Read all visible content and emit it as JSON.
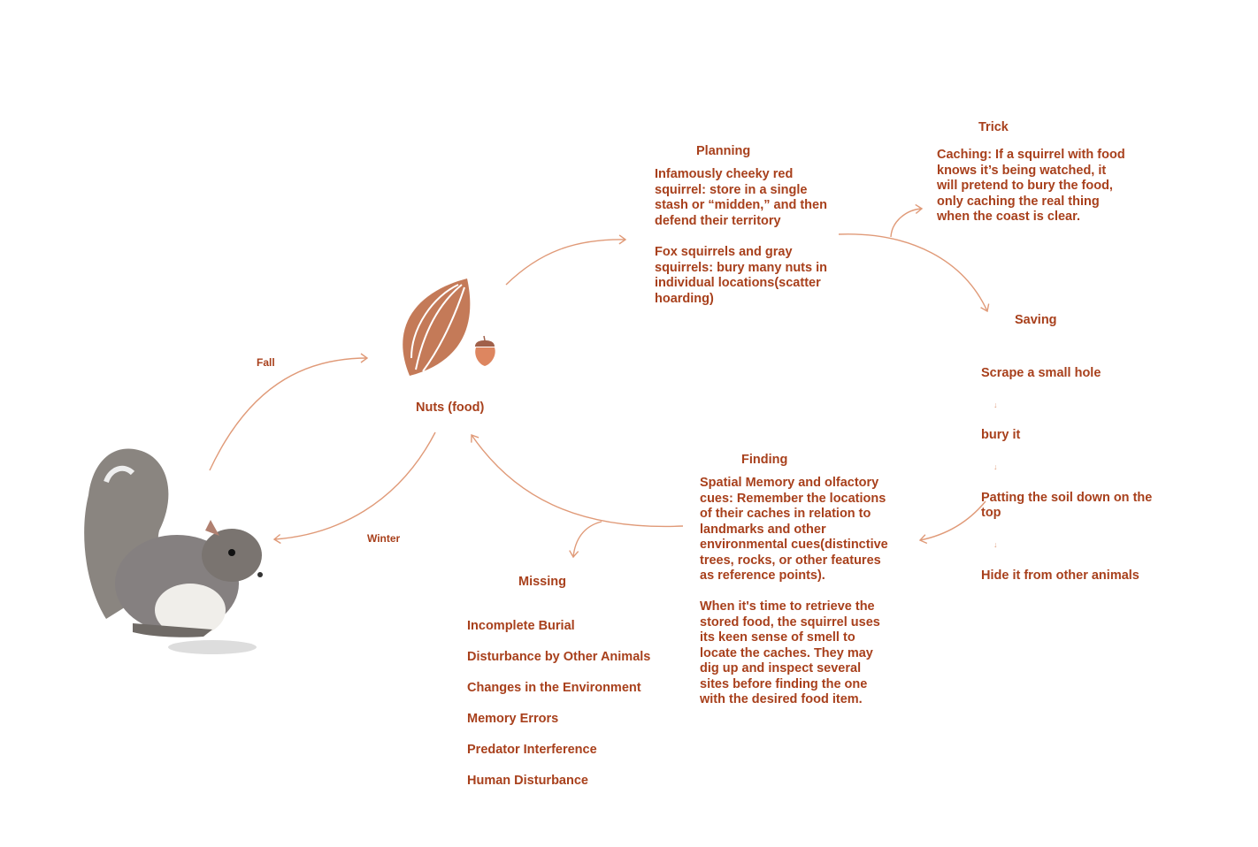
{
  "colors": {
    "text": "#a8401c",
    "arrow": "#e09a78",
    "nut": "#c47a58",
    "acorn": "#dd8660"
  },
  "center": {
    "label": "Nuts (food)",
    "icons": [
      "nut-icon",
      "acorn-icon"
    ]
  },
  "squirrel": {
    "icon": "squirrel-image"
  },
  "edges": {
    "fall": "Fall",
    "winter": "Winter"
  },
  "planning": {
    "title": "Planning",
    "p1": "Infamously cheeky red\nsquirrel: store in a single\nstash or “midden,” and then\ndefend their territory",
    "p2": "Fox squirrels and gray\nsquirrels: bury many nuts in\nindividual locations(scatter\nhoarding)"
  },
  "trick": {
    "title": "Trick",
    "text": "Caching: If a squirrel with food\nknows it’s being watched, it\nwill pretend to bury the food,\nonly caching the real thing\nwhen the coast is clear."
  },
  "saving": {
    "title": "Saving",
    "steps": [
      "Scrape a small hole",
      "bury it",
      "Patting the soil down on the\ntop",
      "Hide it from other animals"
    ],
    "arrow": "↓"
  },
  "finding": {
    "title": "Finding",
    "p1": "Spatial Memory and olfactory\ncues: Remember the locations\nof their caches in relation to\nlandmarks and other\nenvironmental cues(distinctive\ntrees, rocks, or other features\nas reference points).",
    "p2": "When it's time to retrieve the\nstored food, the squirrel uses\nits keen sense of smell to\nlocate the caches. They may\ndig up and inspect several\nsites before finding the one\nwith the desired food item."
  },
  "missing": {
    "title": "Missing",
    "items": [
      "Incomplete Burial",
      "Disturbance by Other Animals",
      "Changes in the Environment",
      "Memory Errors",
      "Predator Interference",
      "Human Disturbance"
    ]
  }
}
